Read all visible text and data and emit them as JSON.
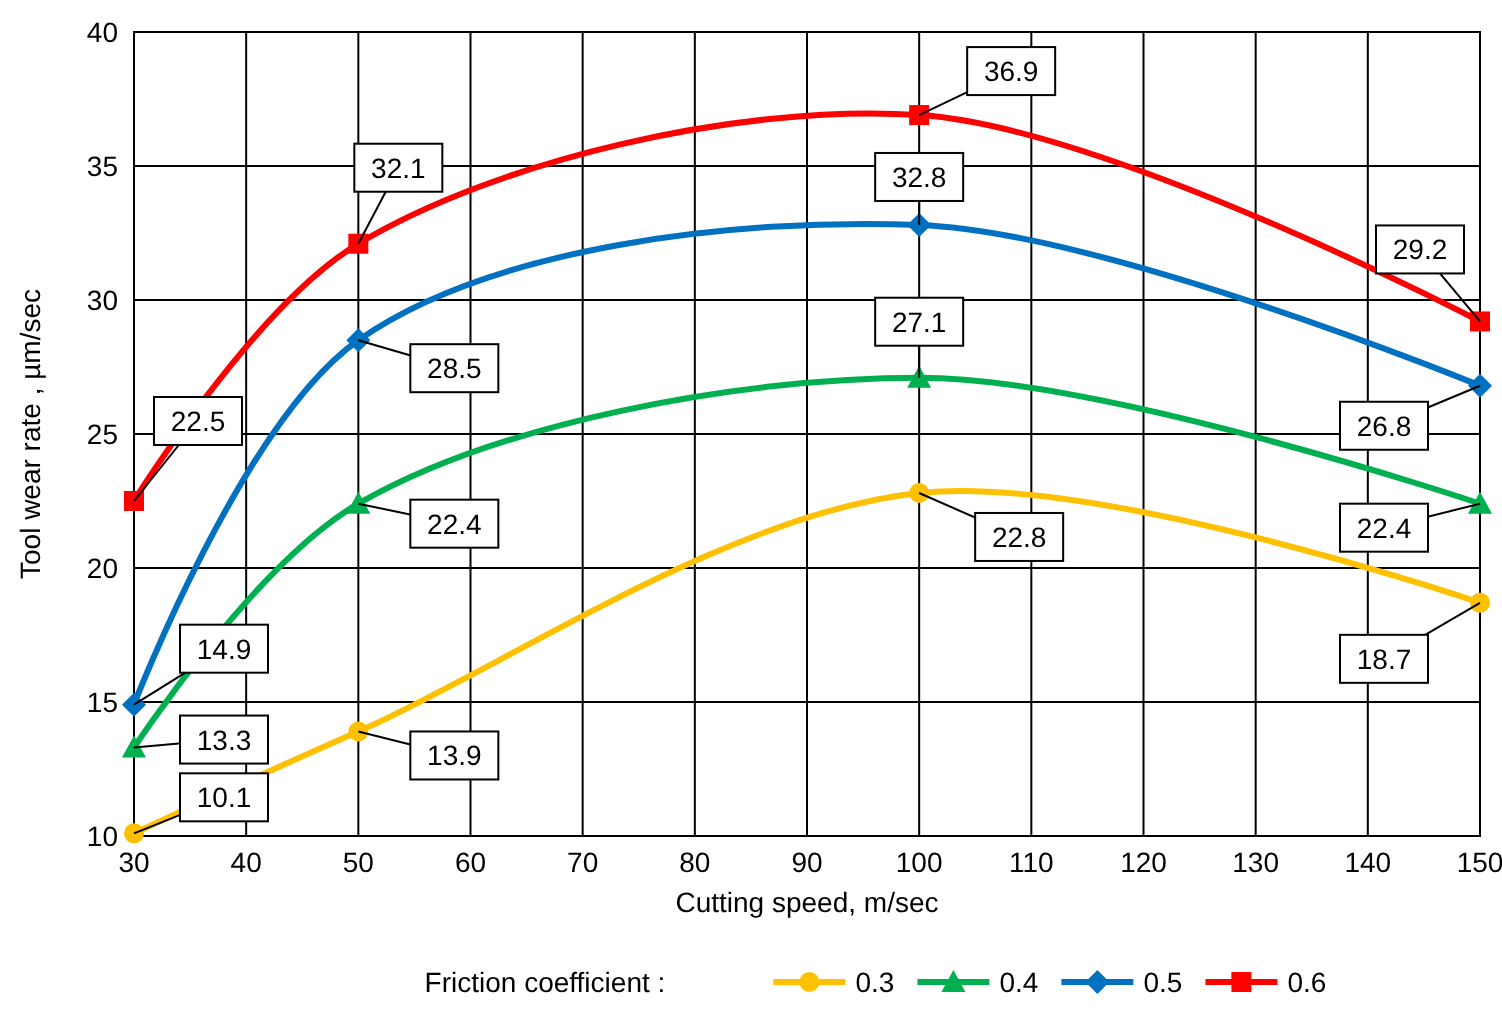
{
  "chart_data": {
    "type": "line",
    "xlabel": "Cutting speed, m/sec",
    "ylabel": "Tool wear rate , µm/sec",
    "legend_title": "Friction coefficient :",
    "x": [
      30,
      50,
      100,
      150
    ],
    "series": [
      {
        "name": "0.3",
        "color": "#ffc000",
        "marker": "circle",
        "values": [
          10.1,
          13.9,
          22.8,
          18.7
        ]
      },
      {
        "name": "0.4",
        "color": "#00b050",
        "marker": "triangle",
        "values": [
          13.3,
          22.4,
          27.1,
          22.4
        ]
      },
      {
        "name": "0.5",
        "color": "#0070c0",
        "marker": "diamond",
        "values": [
          14.9,
          28.5,
          32.8,
          26.8
        ]
      },
      {
        "name": "0.6",
        "color": "#ff0000",
        "marker": "square",
        "values": [
          22.5,
          32.1,
          36.9,
          29.2
        ]
      }
    ],
    "xlim": [
      30,
      150
    ],
    "xticks": [
      30,
      40,
      50,
      60,
      70,
      80,
      90,
      100,
      110,
      120,
      130,
      140,
      150
    ],
    "ylim": [
      10,
      40
    ],
    "yticks": [
      10,
      15,
      20,
      25,
      30,
      35,
      40
    ],
    "grid": true,
    "legend": "bottom",
    "data_labels": true,
    "line_style": "solid"
  }
}
